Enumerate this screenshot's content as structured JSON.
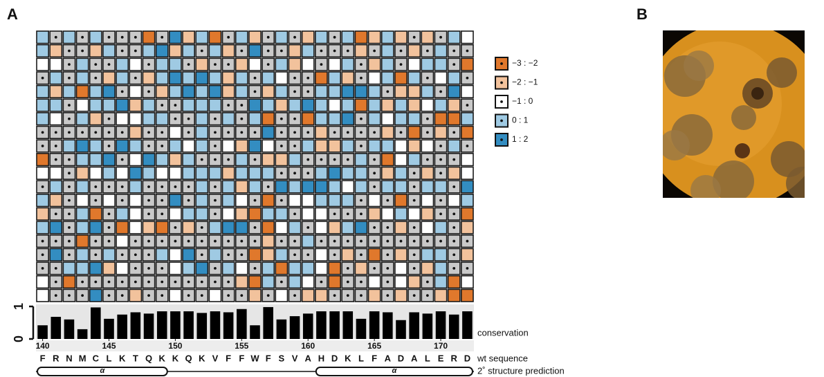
{
  "panels": [
    "A",
    "B"
  ],
  "chart_data": [
    {
      "type": "heatmap",
      "cells": [
        [
          3,
          null,
          3,
          null,
          3,
          null,
          null,
          null,
          0,
          null,
          4,
          1,
          3,
          0,
          null,
          3,
          1,
          null,
          3,
          null,
          1,
          3,
          null,
          3,
          0,
          1,
          3,
          1,
          null,
          1,
          null,
          3,
          2
        ],
        [
          3,
          1,
          null,
          null,
          1,
          3,
          null,
          null,
          3,
          4,
          1,
          3,
          null,
          3,
          1,
          null,
          4,
          null,
          null,
          1,
          3,
          null,
          null,
          null,
          1,
          null,
          3,
          null,
          1,
          null,
          3,
          null,
          null
        ],
        [
          2,
          2,
          null,
          3,
          null,
          null,
          3,
          2,
          null,
          3,
          3,
          null,
          1,
          null,
          null,
          1,
          2,
          null,
          3,
          1,
          2,
          null,
          2,
          3,
          null,
          1,
          3,
          null,
          2,
          3,
          3,
          null,
          0
        ],
        [
          null,
          3,
          null,
          3,
          null,
          1,
          3,
          null,
          1,
          3,
          4,
          3,
          4,
          3,
          1,
          3,
          null,
          3,
          2,
          null,
          null,
          0,
          3,
          1,
          null,
          2,
          3,
          0,
          3,
          null,
          2,
          3,
          null
        ],
        [
          3,
          1,
          3,
          0,
          3,
          4,
          null,
          2,
          null,
          1,
          3,
          4,
          3,
          4,
          1,
          3,
          null,
          1,
          3,
          null,
          null,
          3,
          3,
          4,
          4,
          3,
          null,
          1,
          1,
          3,
          null,
          4,
          2
        ],
        [
          3,
          3,
          null,
          2,
          3,
          3,
          4,
          1,
          3,
          null,
          null,
          3,
          3,
          3,
          null,
          null,
          4,
          3,
          1,
          3,
          4,
          3,
          2,
          3,
          0,
          3,
          1,
          3,
          1,
          2,
          3,
          1,
          null
        ],
        [
          3,
          2,
          null,
          3,
          1,
          null,
          2,
          2,
          3,
          3,
          null,
          null,
          3,
          null,
          3,
          null,
          3,
          0,
          null,
          null,
          0,
          3,
          3,
          4,
          null,
          3,
          2,
          3,
          3,
          null,
          0,
          0,
          3
        ],
        [
          null,
          null,
          null,
          null,
          null,
          null,
          null,
          1,
          null,
          null,
          2,
          null,
          3,
          null,
          null,
          null,
          null,
          4,
          null,
          null,
          null,
          1,
          null,
          null,
          null,
          null,
          1,
          null,
          0,
          null,
          1,
          null,
          0
        ],
        [
          null,
          null,
          3,
          4,
          3,
          null,
          4,
          3,
          null,
          null,
          3,
          2,
          3,
          null,
          2,
          1,
          4,
          2,
          null,
          null,
          3,
          1,
          1,
          3,
          null,
          3,
          3,
          2,
          1,
          2,
          null,
          3,
          null
        ],
        [
          0,
          null,
          null,
          3,
          3,
          4,
          null,
          2,
          4,
          3,
          1,
          3,
          null,
          null,
          null,
          3,
          null,
          1,
          1,
          3,
          null,
          null,
          null,
          null,
          3,
          null,
          0,
          2,
          3,
          null,
          null,
          null,
          2
        ],
        [
          2,
          2,
          null,
          1,
          2,
          3,
          2,
          4,
          3,
          2,
          2,
          3,
          3,
          3,
          1,
          3,
          3,
          3,
          null,
          null,
          null,
          3,
          4,
          3,
          3,
          null,
          1,
          3,
          null,
          1,
          null,
          1,
          2
        ],
        [
          null,
          3,
          null,
          3,
          null,
          null,
          null,
          3,
          null,
          null,
          null,
          null,
          3,
          null,
          3,
          1,
          3,
          null,
          4,
          3,
          4,
          4,
          3,
          2,
          3,
          null,
          3,
          3,
          null,
          3,
          3,
          null,
          4
        ],
        [
          3,
          1,
          null,
          2,
          null,
          2,
          null,
          2,
          null,
          null,
          4,
          null,
          3,
          null,
          3,
          2,
          null,
          0,
          null,
          2,
          2,
          3,
          3,
          3,
          null,
          2,
          null,
          0,
          null,
          2,
          null,
          2,
          3
        ],
        [
          1,
          null,
          null,
          3,
          0,
          null,
          3,
          2,
          null,
          null,
          2,
          3,
          3,
          null,
          2,
          1,
          0,
          3,
          3,
          null,
          2,
          2,
          null,
          null,
          null,
          1,
          2,
          3,
          2,
          1,
          null,
          null,
          0
        ],
        [
          3,
          4,
          null,
          3,
          4,
          null,
          0,
          2,
          1,
          0,
          null,
          1,
          null,
          3,
          4,
          4,
          null,
          0,
          2,
          3,
          null,
          2,
          1,
          3,
          4,
          null,
          null,
          1,
          null,
          2,
          3,
          null,
          1
        ],
        [
          null,
          null,
          null,
          0,
          null,
          null,
          2,
          null,
          null,
          null,
          null,
          null,
          null,
          null,
          null,
          null,
          null,
          1,
          null,
          null,
          3,
          null,
          null,
          null,
          null,
          null,
          null,
          null,
          null,
          null,
          null,
          null,
          null
        ],
        [
          null,
          4,
          null,
          3,
          null,
          3,
          null,
          null,
          null,
          3,
          2,
          4,
          null,
          3,
          null,
          null,
          0,
          1,
          3,
          null,
          null,
          2,
          null,
          1,
          null,
          0,
          null,
          1,
          null,
          3,
          3,
          null,
          1
        ],
        [
          null,
          null,
          3,
          3,
          4,
          1,
          2,
          null,
          null,
          null,
          2,
          3,
          4,
          null,
          3,
          2,
          null,
          3,
          0,
          3,
          3,
          2,
          0,
          null,
          1,
          null,
          null,
          2,
          null,
          1,
          3,
          null,
          null
        ],
        [
          2,
          null,
          0,
          null,
          null,
          null,
          null,
          null,
          null,
          null,
          null,
          null,
          null,
          null,
          null,
          1,
          0,
          3,
          null,
          3,
          2,
          null,
          0,
          null,
          null,
          2,
          null,
          2,
          1,
          null,
          3,
          0,
          2
        ],
        [
          2,
          null,
          null,
          null,
          4,
          null,
          null,
          1,
          null,
          null,
          2,
          null,
          null,
          2,
          null,
          null,
          1,
          null,
          2,
          null,
          1,
          1,
          null,
          null,
          null,
          1,
          null,
          1,
          null,
          null,
          1,
          0,
          0
        ]
      ],
      "legend": {
        "labels": [
          "−3 : −2",
          "−2 : −1",
          "−1 : 0",
          "0 : 1",
          "1 : 2"
        ],
        "colors": [
          "#e0782c",
          "#f2c29c",
          "#ffffff",
          "#9fcae3",
          "#338dc1"
        ]
      },
      "na_color": "#c9c9c9"
    },
    {
      "type": "bar",
      "x": [
        140,
        141,
        142,
        143,
        144,
        145,
        146,
        147,
        148,
        149,
        150,
        151,
        152,
        153,
        154,
        155,
        156,
        157,
        158,
        159,
        160,
        161,
        162,
        163,
        164,
        165,
        166,
        167,
        168,
        169,
        170,
        171,
        172
      ],
      "values": [
        0.42,
        0.68,
        0.6,
        0.3,
        0.97,
        0.62,
        0.75,
        0.82,
        0.78,
        0.85,
        0.85,
        0.85,
        0.8,
        0.85,
        0.82,
        0.92,
        0.42,
        0.98,
        0.6,
        0.7,
        0.78,
        0.85,
        0.85,
        0.85,
        0.62,
        0.85,
        0.82,
        0.58,
        0.82,
        0.78,
        0.85,
        0.75,
        0.85
      ],
      "color": "#000000",
      "xlim": [
        139.5,
        172.5
      ],
      "xticks": [
        140,
        145,
        150,
        155,
        160,
        165,
        170
      ],
      "ylim": [
        0,
        1
      ],
      "yticks": [
        0,
        1
      ],
      "ylabel": "conservation",
      "sequence": [
        "F",
        "R",
        "N",
        "M",
        "C",
        "L",
        "K",
        "T",
        "Q",
        "K",
        "K",
        "Q",
        "K",
        "V",
        "F",
        "F",
        "W",
        "F",
        "S",
        "V",
        "A",
        "H",
        "D",
        "K",
        "L",
        "F",
        "A",
        "D",
        "A",
        "L",
        "E",
        "R",
        "D"
      ],
      "sequence_label": "wt sequence",
      "structure": [
        {
          "start": 140,
          "end": 149,
          "label": "α"
        },
        {
          "start": 161,
          "end": 172,
          "label": "α"
        }
      ],
      "structure_label": "2˚ structure prediction"
    }
  ]
}
